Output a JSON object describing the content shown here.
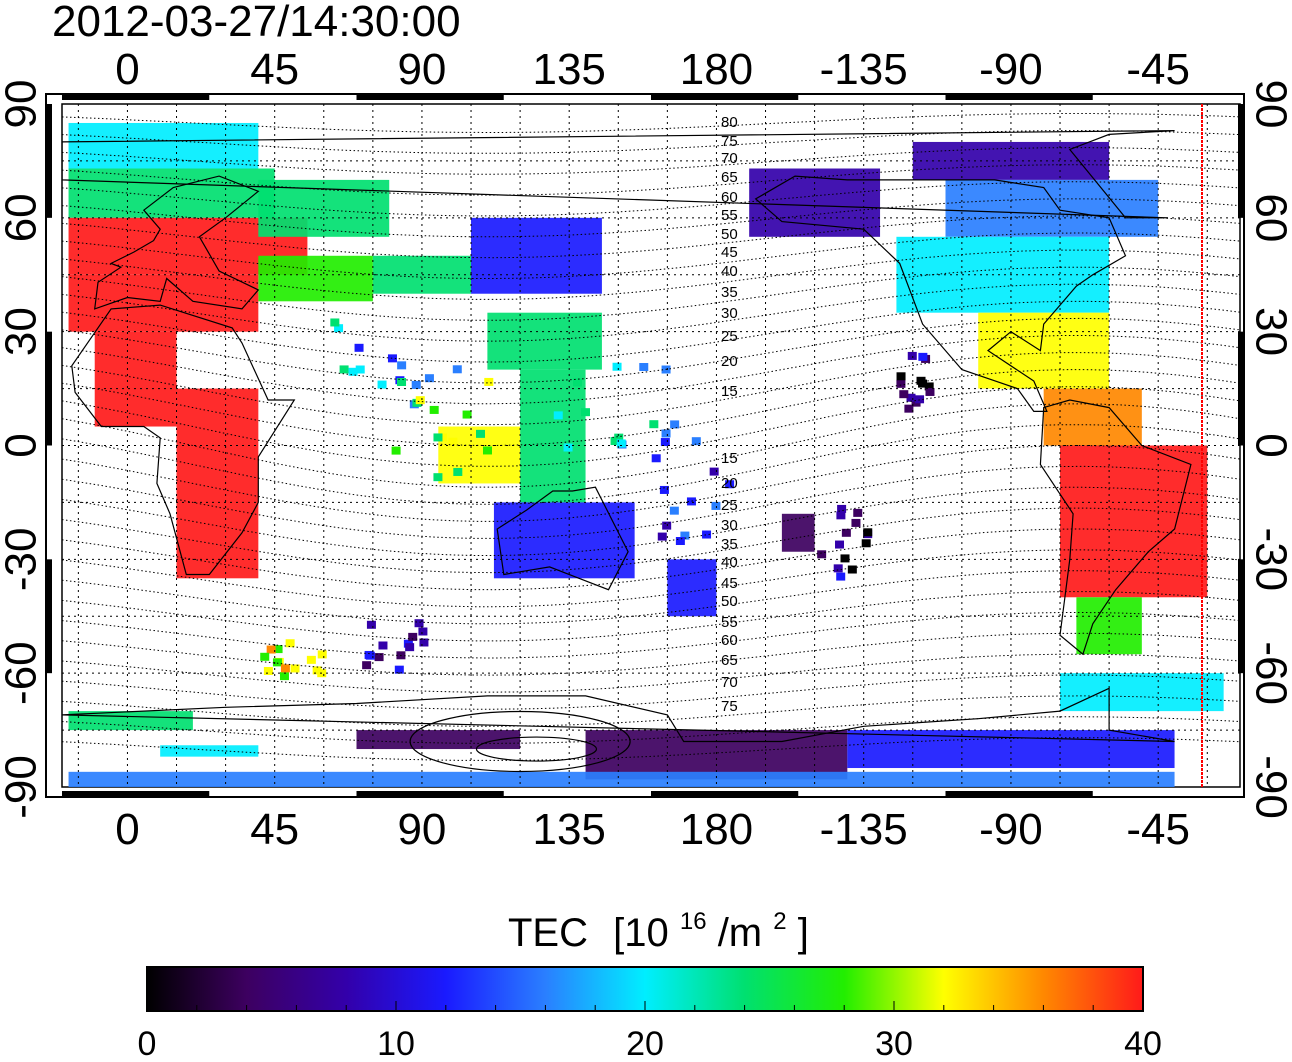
{
  "timestamp": "2012-03-27/14:30:00",
  "x_ticks": [
    "0",
    "45",
    "90",
    "135",
    "180",
    "-135",
    "-90",
    "-45"
  ],
  "y_ticks": [
    "90",
    "60",
    "30",
    "0",
    "-30",
    "-60",
    "-90"
  ],
  "contour_labels": [
    "80",
    "75",
    "70",
    "65",
    "60",
    "55",
    "50",
    "45",
    "40",
    "35",
    "30",
    "25",
    "20",
    "15",
    "15",
    "20",
    "25",
    "30",
    "35",
    "40",
    "45",
    "50",
    "55",
    "60",
    "65",
    "70",
    "75"
  ],
  "colorbar": {
    "title_main": "TEC",
    "title_unit_prefix": "[10",
    "title_unit_exp1": "16",
    "title_unit_mid": "/m",
    "title_unit_exp2": "2",
    "title_unit_suffix": "]",
    "tick_labels": [
      "0",
      "10",
      "20",
      "30",
      "40"
    ],
    "range": [
      0,
      40
    ],
    "colors": [
      "#000000",
      "#3d0060",
      "#3300aa",
      "#1a1aff",
      "#2a7fff",
      "#00eeff",
      "#00e070",
      "#22ee00",
      "#ffff00",
      "#ff8800",
      "#ff1a1a"
    ]
  },
  "colors": {
    "grid": "#000000",
    "coast": "#000000",
    "terminator": "#ff0000",
    "frame": "#000000"
  },
  "map": {
    "lon_axis_range": [
      -20,
      340
    ],
    "lat_axis_range": [
      -90,
      90
    ],
    "projection": "equirectangular",
    "grid_spacing_deg": 15
  }
}
